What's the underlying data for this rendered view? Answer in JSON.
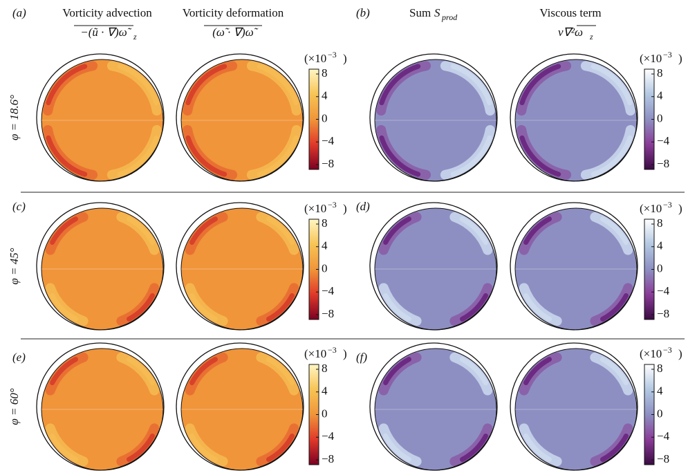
{
  "headers": {
    "advection": {
      "title": "Vorticity advection",
      "formula": "−(ũ · ∇)ω̃",
      "sub": "z"
    },
    "deformation": {
      "title": "Vorticity deformation",
      "formula": "(ω̃ · ∇)ω̃"
    },
    "sum": {
      "title": "Sum",
      "symbol": "S",
      "sub": "prod"
    },
    "viscous": {
      "title": "Viscous term",
      "formula": "ν∇²ω",
      "sub": "z"
    }
  },
  "panel_labels": [
    "(a)",
    "(b)",
    "(c)",
    "(d)",
    "(e)",
    "(f)"
  ],
  "row_labels": [
    "φ = 18.6°",
    "φ = 45°",
    "φ = 60°"
  ],
  "colorbar": {
    "label": "(×10",
    "exponent": "−3",
    "close": ")",
    "ticks": [
      "8",
      "4",
      "0",
      "−4",
      "−8"
    ]
  }
}
